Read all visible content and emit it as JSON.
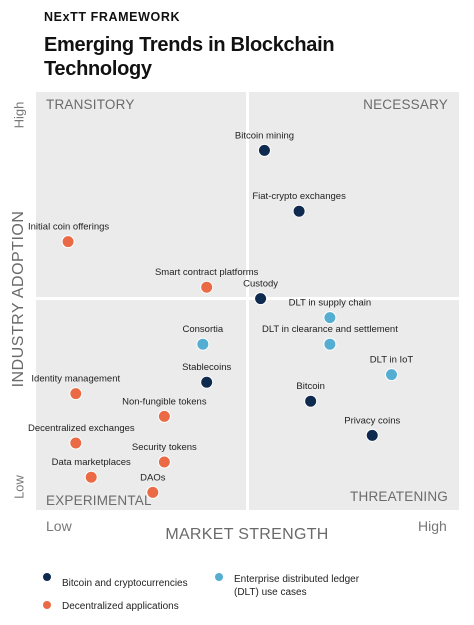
{
  "header": {
    "brand": "NExTT FRAMEWORK",
    "title": "Emerging Trends in Blockchain Technology"
  },
  "colors": {
    "crypto": "#0f2a4f",
    "dlt": "#55aed1",
    "decentralized": "#ea6a45",
    "quadrant_bg": "#ebebeb"
  },
  "chart_data": {
    "type": "scatter",
    "title": "Emerging Trends in Blockchain Technology",
    "xlabel": "MARKET STRENGTH",
    "ylabel": "INDUSTRY ADOPTION",
    "xticks": [
      "Low",
      "High"
    ],
    "yticks": [
      "Low",
      "High"
    ],
    "xlim": [
      0,
      100
    ],
    "ylim": [
      0,
      100
    ],
    "quadrants": {
      "top_left": "TRANSITORY",
      "top_right": "NECESSARY",
      "bottom_left": "EXPERIMENTAL",
      "bottom_right": "THREATENING"
    },
    "series": [
      {
        "name": "Bitcoin and cryptocurrencies",
        "key": "crypto"
      },
      {
        "name": "Enterprise distributed ledger (DLT) use cases",
        "key": "dlt"
      },
      {
        "name": "Decentralized applications",
        "key": "decentralized"
      }
    ],
    "points": [
      {
        "label": "Bitcoin mining",
        "series": "crypto",
        "x": 57,
        "y": 92
      },
      {
        "label": "Fiat-crypto exchanges",
        "series": "crypto",
        "x": 66,
        "y": 76
      },
      {
        "label": "Initial coin offerings",
        "series": "decentralized",
        "x": 6,
        "y": 68
      },
      {
        "label": "Smart contract platforms",
        "series": "decentralized",
        "x": 42,
        "y": 56
      },
      {
        "label": "Custody",
        "series": "crypto",
        "x": 56,
        "y": 53
      },
      {
        "label": "DLT in supply chain",
        "series": "dlt",
        "x": 74,
        "y": 48
      },
      {
        "label": "Consortia",
        "series": "dlt",
        "x": 41,
        "y": 41
      },
      {
        "label": "DLT in clearance and settlement",
        "series": "dlt",
        "x": 74,
        "y": 41
      },
      {
        "label": "Stablecoins",
        "series": "crypto",
        "x": 42,
        "y": 31
      },
      {
        "label": "Identity management",
        "series": "decentralized",
        "x": 8,
        "y": 28
      },
      {
        "label": "DLT in IoT",
        "series": "dlt",
        "x": 90,
        "y": 33
      },
      {
        "label": "Bitcoin",
        "series": "crypto",
        "x": 69,
        "y": 26
      },
      {
        "label": "Non-fungible tokens",
        "series": "decentralized",
        "x": 31,
        "y": 22
      },
      {
        "label": "Privacy coins",
        "series": "crypto",
        "x": 85,
        "y": 17
      },
      {
        "label": "Decentralized exchanges",
        "series": "decentralized",
        "x": 8,
        "y": 15
      },
      {
        "label": "Security tokens",
        "series": "decentralized",
        "x": 31,
        "y": 10
      },
      {
        "label": "Data marketplaces",
        "series": "decentralized",
        "x": 12,
        "y": 6
      },
      {
        "label": "DAOs",
        "series": "decentralized",
        "x": 28,
        "y": 2
      }
    ]
  },
  "legend": [
    {
      "label": "Bitcoin and cryptocurrencies",
      "series": "crypto"
    },
    {
      "label": "Enterprise distributed ledger (DLT) use cases",
      "series": "dlt"
    },
    {
      "label": "Decentralized applications",
      "series": "decentralized"
    }
  ]
}
